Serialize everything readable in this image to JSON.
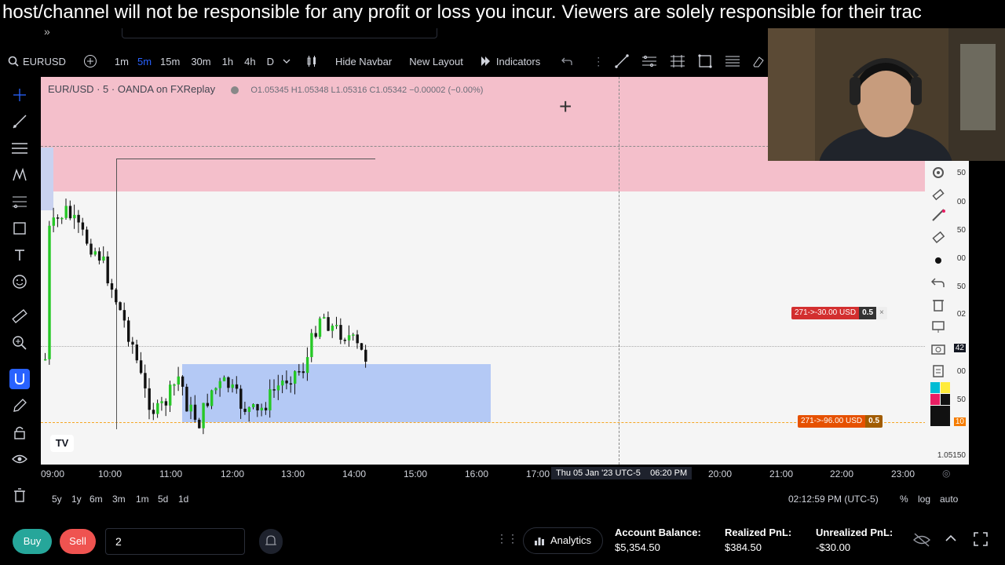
{
  "disclaimer": "host/channel will not be responsible for any profit or loss you incur. Viewers are solely responsible for their trac",
  "toolbar": {
    "symbol": "EURUSD",
    "intervals": [
      "1m",
      "5m",
      "15m",
      "30m",
      "1h",
      "4h",
      "D"
    ],
    "active_interval": "5m",
    "hide_navbar": "Hide Navbar",
    "new_layout": "New Layout",
    "indicators": "Indicators"
  },
  "chart": {
    "title": "EUR/USD · 5 · OANDA on FXReplay",
    "ohlc": "O1.05345 H1.05348 L1.05316 C1.05342 −0.00002 (−0.00%)",
    "tag_upper": {
      "label": "271->-30.00 USD",
      "size": "0.5"
    },
    "tag_lower": {
      "label": "271->-96.00 USD",
      "size": "0.5"
    },
    "tag_upper_color": "#d32f2f",
    "tag_lower_color": "#f57c00",
    "pink_zone_color": "#f4bfcb",
    "blue_zone_color": "#b4c9f5",
    "price_labels": [
      "50",
      "00",
      "50",
      "00",
      "50",
      "02",
      "42",
      "00",
      "50",
      "10",
      "1.05150"
    ],
    "time_labels": [
      "09:00",
      "10:00",
      "11:00",
      "12:00",
      "13:00",
      "14:00",
      "15:00",
      "16:00",
      "17:00",
      "20:00",
      "21:00",
      "22:00",
      "23:00"
    ],
    "crosshair_time": "Thu 05 Jan '23 UTC-5    06:20 PM"
  },
  "bottom": {
    "ranges": [
      "5y",
      "1y",
      "6m",
      "3m",
      "1m",
      "5d",
      "1d"
    ],
    "clock": "02:12:59 PM (UTC-5)",
    "percent": "%",
    "log": "log",
    "auto": "auto"
  },
  "trade": {
    "buy": "Buy",
    "sell": "Sell",
    "quantity": "2",
    "analytics": "Analytics",
    "account_balance_label": "Account Balance:",
    "account_balance": "$5,354.50",
    "realized_label": "Realized PnL:",
    "realized": "$384.50",
    "unrealized_label": "Unrealized PnL:",
    "unrealized": "-$30.00"
  },
  "icons": [
    "search-icon",
    "plus-icon",
    "bar-type-icon",
    "indicators-icon",
    "undo-icon",
    "crosshair-icon",
    "trendline-icon",
    "fib-icon",
    "pattern-icon",
    "text-icon",
    "emoji-icon",
    "ruler-icon",
    "zoom-icon",
    "magnet-icon",
    "pencil-icon",
    "lock-icon",
    "eye-icon",
    "trash-icon"
  ]
}
